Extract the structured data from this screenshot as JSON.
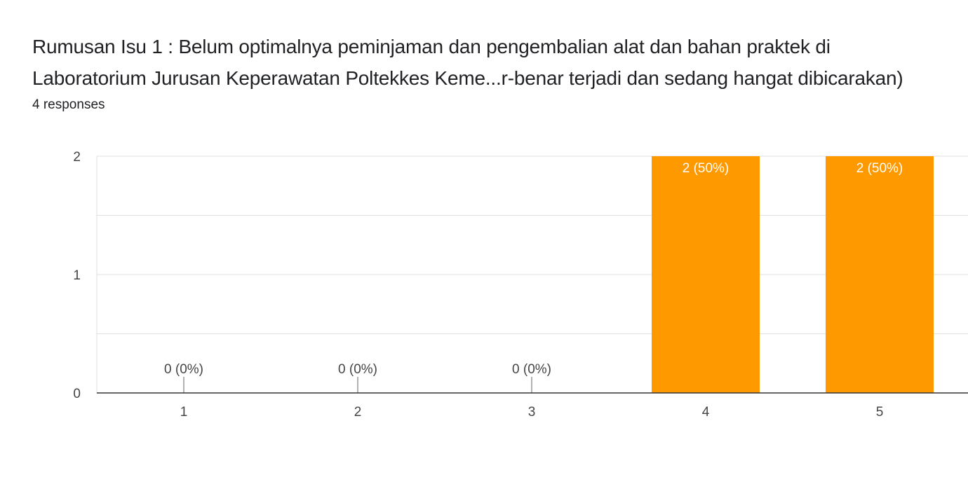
{
  "header": {
    "title_line1": "Rumusan Isu 1 : Belum optimalnya peminjaman dan pengembalian alat dan bahan praktek di",
    "title_line2": "Laboratorium Jurusan Keperawatan Poltekkes Keme...r-benar terjadi dan sedang hangat dibicarakan)",
    "responses": "4 responses"
  },
  "chart_data": {
    "type": "bar",
    "categories": [
      "1",
      "2",
      "3",
      "4",
      "5"
    ],
    "values": [
      0,
      0,
      0,
      2,
      2
    ],
    "data_labels": [
      "0 (0%)",
      "0 (0%)",
      "0 (0%)",
      "2 (50%)",
      "2 (50%)"
    ],
    "ylim": [
      0,
      2
    ],
    "yticks": [
      0,
      1,
      2
    ],
    "grid": true,
    "colors": {
      "bar": "#ff9900",
      "grid": "#e0e0e0",
      "axis": "#333333"
    }
  }
}
